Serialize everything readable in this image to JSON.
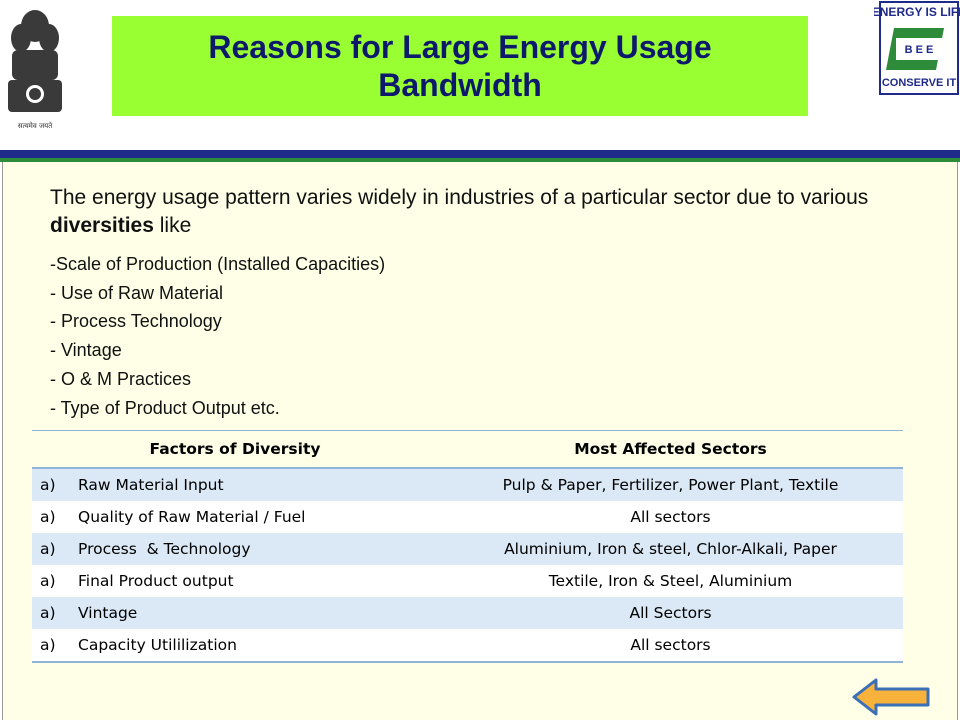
{
  "header": {
    "title": "Reasons for Large Energy Usage Bandwidth",
    "emblem_caption": "सत्यमेव जयते",
    "bee_logo": {
      "top": "ENERGY IS LIFE",
      "center": "B E E",
      "bottom": "CONSERVE IT"
    }
  },
  "intro": {
    "text_before": "The energy usage pattern varies widely in industries of a particular sector due to various ",
    "bold": "diversities",
    "text_after": " like"
  },
  "bullets": [
    "-Scale of Production (Installed Capacities)",
    "- Use of Raw Material",
    "- Process Technology",
    "- Vintage",
    "- O & M Practices",
    "- Type of Product Output etc."
  ],
  "table": {
    "headers": [
      "Factors of Diversity",
      "Most Affected Sectors"
    ],
    "rows": [
      {
        "marker": "a)",
        "factor": "Raw Material Input",
        "sectors": "Pulp & Paper, Fertilizer, Power Plant, Textile"
      },
      {
        "marker": "a)",
        "factor": "Quality of Raw Material / Fuel",
        "sectors": "All sectors"
      },
      {
        "marker": "a)",
        "factor": "Process  & Technology",
        "sectors": "Aluminium, Iron & steel, Chlor-Alkali, Paper"
      },
      {
        "marker": "a)",
        "factor": "Final Product output",
        "sectors": "Textile, Iron & Steel, Aluminium"
      },
      {
        "marker": "a)",
        "factor": "Vintage",
        "sectors": "All Sectors"
      },
      {
        "marker": "a)",
        "factor": "Capacity Utililization",
        "sectors": "All sectors"
      }
    ]
  },
  "nav": {
    "back_icon": "left-arrow-icon"
  },
  "colors": {
    "title_bg": "#99ff33",
    "title_text": "#0d1a6b",
    "rule_navy": "#1f2a8a",
    "rule_green": "#2e8b3a",
    "content_bg": "#ffffe8",
    "row_shade": "#dbe9f6",
    "arrow_fill": "#f7b23b"
  }
}
